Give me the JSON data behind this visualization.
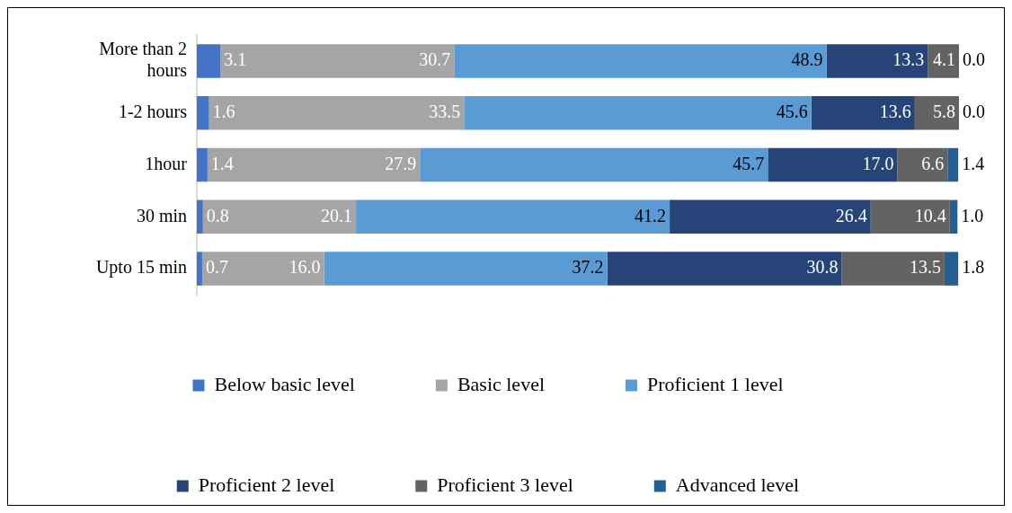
{
  "chart_data": {
    "type": "bar",
    "orientation": "horizontal",
    "stacked": true,
    "legend": "bottom",
    "categories": [
      "More than 2 hours",
      "1-2 hours",
      "1hour",
      "30 min",
      "Upto 15 min"
    ],
    "series": [
      {
        "name": "Below basic level",
        "color": "#4472c4",
        "values": [
          3.1,
          1.6,
          1.4,
          0.8,
          0.7
        ],
        "value_labels": [
          "3.1",
          "1.6",
          "1.4",
          "0.8",
          "0.7"
        ]
      },
      {
        "name": "Basic level",
        "color": "#a5a5a5",
        "values": [
          30.7,
          33.5,
          27.9,
          20.1,
          16.0
        ],
        "value_labels": [
          "30.7",
          "33.5",
          "27.9",
          "20.1",
          "16.0"
        ]
      },
      {
        "name": "Proficient 1 level",
        "color": "#5b9bd5",
        "values": [
          48.9,
          45.6,
          45.7,
          41.2,
          37.2
        ],
        "value_labels": [
          "48.9",
          "45.6",
          "45.7",
          "41.2",
          "37.2"
        ]
      },
      {
        "name": "Proficient 2 level",
        "color": "#264478",
        "values": [
          13.3,
          13.6,
          17.0,
          26.4,
          30.8
        ],
        "value_labels": [
          "13.3",
          "13.6",
          "17.0",
          "26.4",
          "30.8"
        ]
      },
      {
        "name": "Proficient 3 level",
        "color": "#636363",
        "values": [
          4.1,
          5.8,
          6.6,
          10.4,
          13.5
        ],
        "value_labels": [
          "4.1",
          "5.8",
          "6.6",
          "10.4",
          "13.5"
        ]
      },
      {
        "name": "Advanced level",
        "color": "#255e91",
        "values": [
          0.0,
          0.0,
          1.4,
          1.0,
          1.8
        ],
        "value_labels": [
          "0.0",
          "0.0",
          "1.4",
          "1.0",
          "1.8"
        ]
      }
    ]
  }
}
